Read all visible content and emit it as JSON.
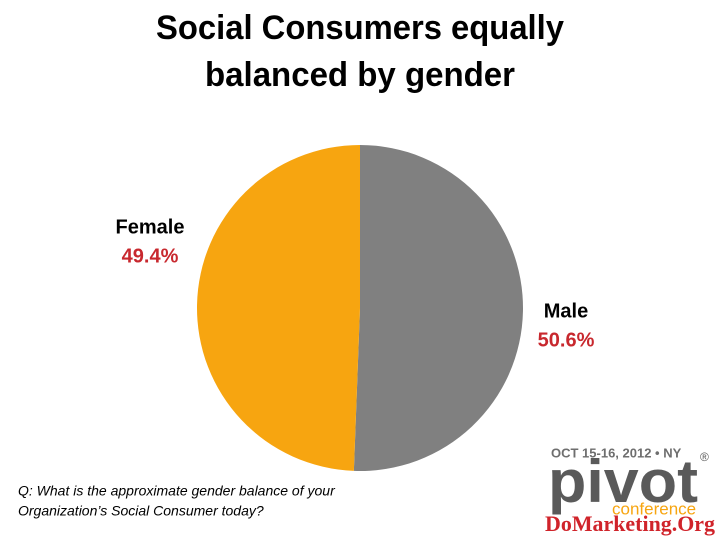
{
  "chart_data": {
    "type": "pie",
    "title": [
      "Social Consumers equally",
      "balanced by gender"
    ],
    "categories": [
      "Male",
      "Female"
    ],
    "values": [
      50.6,
      49.4
    ],
    "value_labels": [
      "50.6%",
      "49.4%"
    ],
    "colors": [
      "#808080",
      "#f7a510"
    ],
    "note": [
      "Q: What is the approximate gender balance of your",
      "Organization’s Social Consumer today?"
    ]
  },
  "logo": {
    "date": "OCT 15-16, 2012 • NY",
    "name": "pivot",
    "mark": "®",
    "sub": "conference",
    "site": "DoMarketing.Org"
  }
}
